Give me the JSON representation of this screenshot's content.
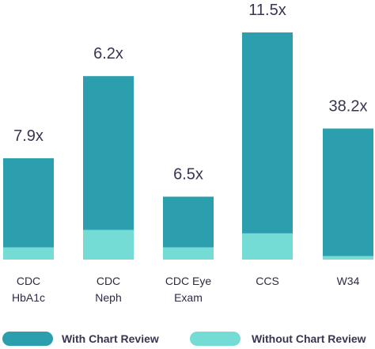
{
  "chart_data": {
    "type": "bar",
    "stacked": true,
    "title": "",
    "xlabel": "",
    "ylabel": "",
    "categories": [
      [
        "CDC",
        "HbA1c"
      ],
      [
        "CDC",
        "Neph"
      ],
      [
        "CDC Eye",
        "Exam"
      ],
      [
        "CCS"
      ],
      [
        "W34"
      ]
    ],
    "series": [
      {
        "name": "Without Chart Review",
        "color": "#74dbd5",
        "values": [
          0.7,
          1.7,
          0.7,
          1.5,
          0.2
        ]
      },
      {
        "name": "With Chart Review",
        "color": "#2b9fad",
        "values": [
          5.1,
          8.8,
          2.9,
          11.5,
          7.3
        ]
      }
    ],
    "totals": [
      5.8,
      10.5,
      3.6,
      13.0,
      7.5
    ],
    "bar_labels": [
      "7.9x",
      "6.2x",
      "6.5x",
      "11.5x",
      "38.2x"
    ],
    "ylim": [
      0,
      13.0
    ],
    "grid": false,
    "legend_position": "bottom"
  }
}
